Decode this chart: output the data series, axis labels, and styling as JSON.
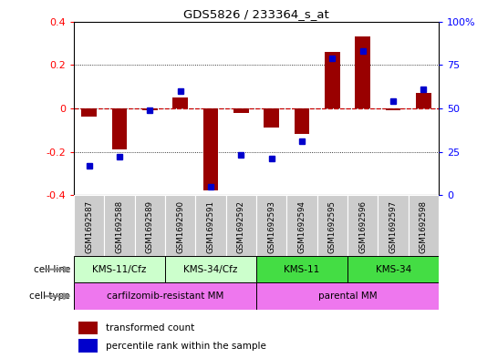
{
  "title": "GDS5826 / 233364_s_at",
  "samples": [
    "GSM1692587",
    "GSM1692588",
    "GSM1692589",
    "GSM1692590",
    "GSM1692591",
    "GSM1692592",
    "GSM1692593",
    "GSM1692594",
    "GSM1692595",
    "GSM1692596",
    "GSM1692597",
    "GSM1692598"
  ],
  "transformed_count": [
    -0.04,
    -0.19,
    -0.01,
    0.05,
    -0.38,
    -0.02,
    -0.09,
    -0.12,
    0.26,
    0.33,
    -0.01,
    0.07
  ],
  "percentile_rank": [
    17,
    22,
    49,
    60,
    5,
    23,
    21,
    31,
    79,
    83,
    54,
    61
  ],
  "bar_color": "#990000",
  "dot_color": "#0000cc",
  "left_ylim": [
    -0.4,
    0.4
  ],
  "right_ylim": [
    0,
    100
  ],
  "left_yticks": [
    -0.4,
    -0.2,
    0.0,
    0.2,
    0.4
  ],
  "right_yticks": [
    0,
    25,
    50,
    75,
    100
  ],
  "right_yticklabels": [
    "0",
    "25",
    "50",
    "75",
    "100%"
  ],
  "cell_line_groups": [
    {
      "label": "KMS-11/Cfz",
      "start": 0,
      "end": 2,
      "color": "#ccffcc"
    },
    {
      "label": "KMS-34/Cfz",
      "start": 3,
      "end": 5,
      "color": "#ccffcc"
    },
    {
      "label": "KMS-11",
      "start": 6,
      "end": 8,
      "color": "#44dd44"
    },
    {
      "label": "KMS-34",
      "start": 9,
      "end": 11,
      "color": "#44dd44"
    }
  ],
  "cell_type_groups": [
    {
      "label": "carfilzomib-resistant MM",
      "start": 0,
      "end": 5,
      "color": "#ee77ee"
    },
    {
      "label": "parental MM",
      "start": 6,
      "end": 11,
      "color": "#ee77ee"
    }
  ],
  "legend_bar_label": "transformed count",
  "legend_dot_label": "percentile rank within the sample",
  "plot_bg": "#ffffff",
  "sample_label_bg": "#cccccc",
  "zero_line_color": "#cc0000",
  "bar_width": 0.5
}
